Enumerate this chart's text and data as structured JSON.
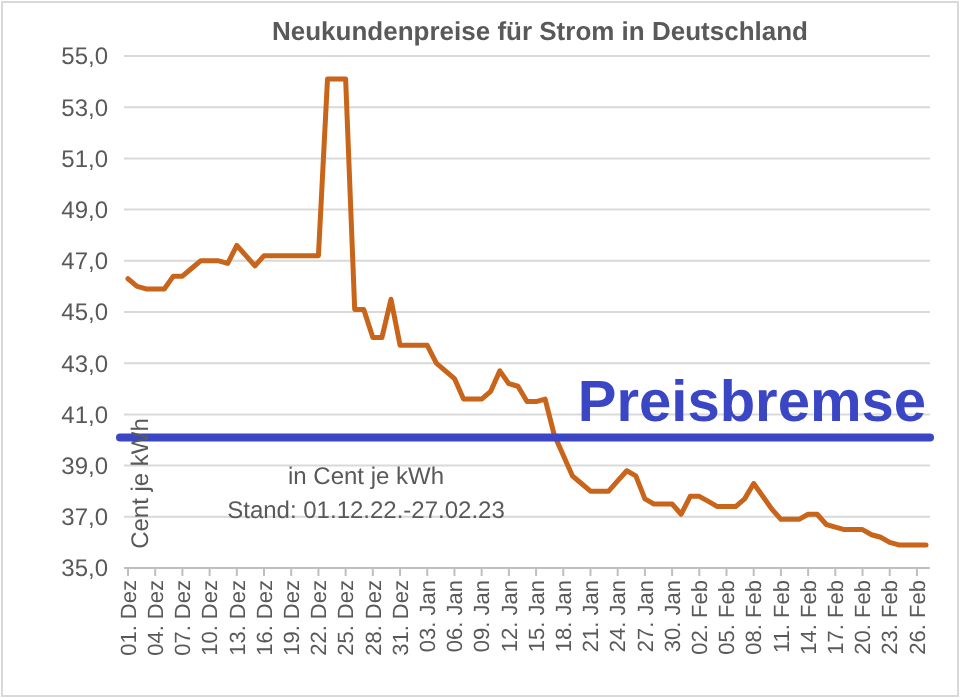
{
  "chart_data": {
    "type": "line",
    "title": "Neukundenpreise für Strom in Deutschland",
    "ylabel": "Cent je kWh",
    "annotations": [
      "in Cent je kWh",
      "Stand:  01.12.22.-27.02.23"
    ],
    "categories": [
      "01. Dez",
      null,
      null,
      "04. Dez",
      null,
      null,
      "07. Dez",
      null,
      null,
      "10. Dez",
      null,
      null,
      "13. Dez",
      null,
      null,
      "16. Dez",
      null,
      null,
      "19. Dez",
      null,
      null,
      "22. Dez",
      null,
      null,
      "25. Dez",
      null,
      null,
      "28. Dez",
      null,
      null,
      "31. Dez",
      null,
      null,
      "03. Jan",
      null,
      null,
      "06. Jan",
      null,
      null,
      "09. Jan",
      null,
      null,
      "12. Jan",
      null,
      null,
      "15. Jan",
      null,
      null,
      "18. Jan",
      null,
      null,
      "21. Jan",
      null,
      null,
      "24. Jan",
      null,
      null,
      "27. Jan",
      null,
      null,
      "30. Jan",
      null,
      null,
      "02. Feb",
      null,
      null,
      "05. Feb",
      null,
      null,
      "08. Feb",
      null,
      null,
      "11. Feb",
      null,
      null,
      "14. Feb",
      null,
      null,
      "17. Feb",
      null,
      null,
      "20. Feb",
      null,
      null,
      "23. Feb",
      null,
      null,
      "26. Feb",
      null
    ],
    "series": [
      {
        "color": "#c8651b",
        "values": [
          46.3,
          46.0,
          45.9,
          45.9,
          45.9,
          46.4,
          46.4,
          46.7,
          47.0,
          47.0,
          47.0,
          46.9,
          47.6,
          47.2,
          46.8,
          47.2,
          47.2,
          47.2,
          47.2,
          47.2,
          47.2,
          47.2,
          54.1,
          54.1,
          54.1,
          45.1,
          45.1,
          44.0,
          44.0,
          45.5,
          43.7,
          43.7,
          43.7,
          43.7,
          43.0,
          42.7,
          42.4,
          41.6,
          41.6,
          41.6,
          41.9,
          42.7,
          42.2,
          42.1,
          41.5,
          41.5,
          41.6,
          40.2,
          39.4,
          38.6,
          38.3,
          38.0,
          38.0,
          38.0,
          38.4,
          38.8,
          38.6,
          37.7,
          37.5,
          37.5,
          37.5,
          37.1,
          37.8,
          37.8,
          37.6,
          37.4,
          37.4,
          37.4,
          37.7,
          38.3,
          37.8,
          37.3,
          36.9,
          36.9,
          36.9,
          37.1,
          37.1,
          36.7,
          36.6,
          36.5,
          36.5,
          36.5,
          36.3,
          36.2,
          36.0,
          35.9,
          35.9,
          35.9,
          35.9
        ]
      }
    ],
    "ylim": [
      35,
      55
    ],
    "yticks": [
      {
        "value": 35,
        "label": "35,0"
      },
      {
        "value": 37,
        "label": "37,0"
      },
      {
        "value": 39,
        "label": "39,0"
      },
      {
        "value": 41,
        "label": "41,0"
      },
      {
        "value": 43,
        "label": "43,0"
      },
      {
        "value": 45,
        "label": "45,0"
      },
      {
        "value": 47,
        "label": "47,0"
      },
      {
        "value": 49,
        "label": "49,0"
      },
      {
        "value": 51,
        "label": "51,0"
      },
      {
        "value": 53,
        "label": "53,0"
      },
      {
        "value": 55,
        "label": "55,0"
      }
    ],
    "ref_lines": [
      {
        "axis": "y",
        "value": 40.1,
        "label": "Preisbremse",
        "color": "#3b46c4"
      }
    ],
    "grid": "y",
    "marker": "none",
    "line_style": "solid"
  }
}
